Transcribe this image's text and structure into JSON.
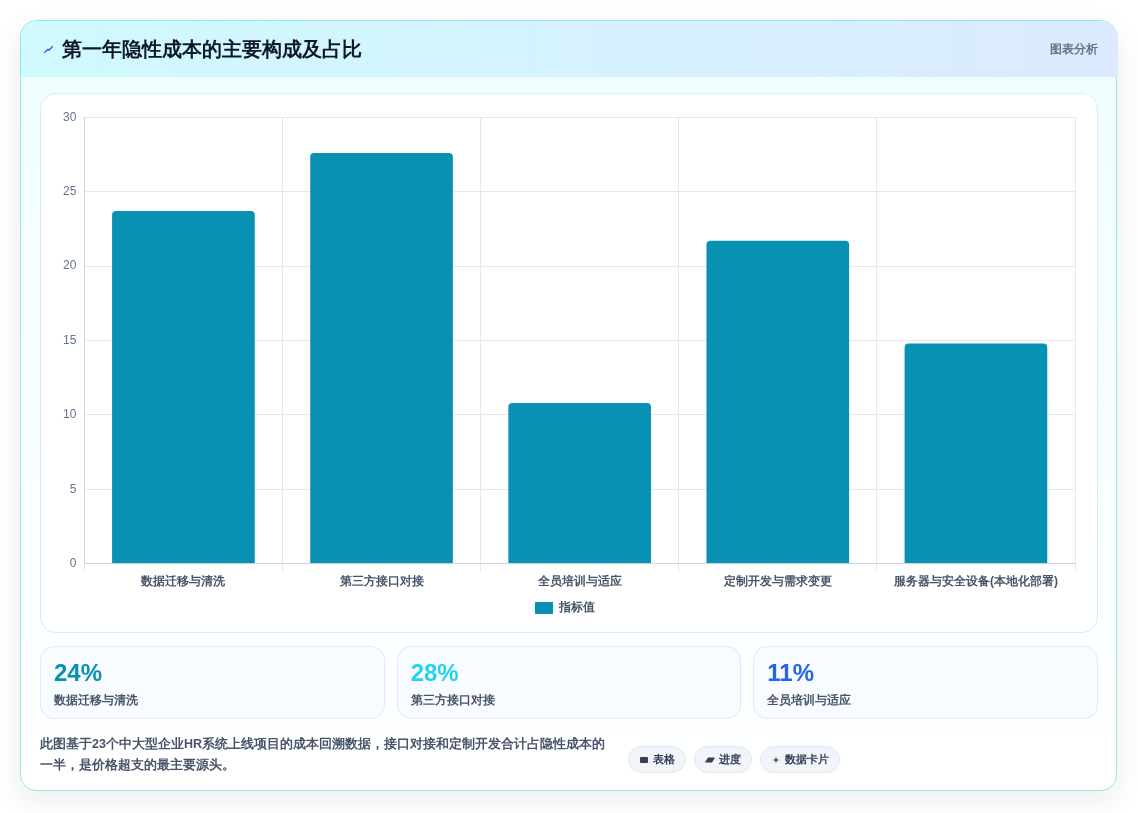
{
  "chart_data": [
    {
      "type": "bar",
      "title": "第一年隐性成本的主要构成及占比",
      "categories": [
        "数据迁移与清洗",
        "第三方接口对接",
        "全员培训与适应",
        "定制开发与需求变更",
        "服务器与安全设备(本地化部署)"
      ],
      "series": [
        {
          "name": "指标值",
          "color": "#0891b2",
          "values": [
            23.7,
            27.6,
            10.8,
            21.7,
            14.8
          ]
        }
      ],
      "ylim": [
        0,
        30
      ],
      "yticks": [
        0,
        5,
        10,
        15,
        20,
        25,
        30
      ],
      "grid": true,
      "legend": "bottom",
      "annotations": [
        "图表分析"
      ]
    },
    {
      "type": "other",
      "categories": [
        "数据迁移与清洗",
        "第三方接口对接",
        "全员培训与适应"
      ],
      "value_labels": [
        "24%",
        "28%",
        "11%"
      ],
      "annotations": [
        "此图基于23个中大型企业HR系统上线项目的成本回溯数据，接口对接和定制开发合计占隐性成本的一半，是价格超支的最主要源头。",
        "表格",
        "进度",
        "数据卡片"
      ]
    }
  ]
}
